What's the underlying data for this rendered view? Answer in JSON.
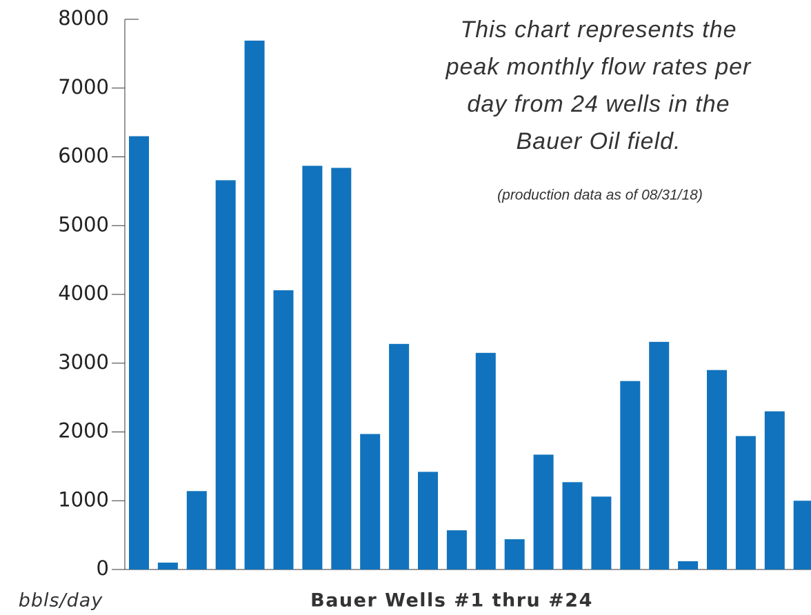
{
  "chart_data": {
    "type": "bar",
    "annotation": [
      "This chart represents the",
      "peak monthly flow rates per",
      "day from 24 wells in the",
      "Bauer Oil field."
    ],
    "annotation_note": "(production data as of 08/31/18)",
    "x_label": "Bauer Wells #1 thru #24",
    "y_label": "bbls/day",
    "categories": [
      null,
      null,
      null,
      null,
      null,
      null,
      null,
      null,
      null,
      null,
      null,
      null,
      null,
      null,
      null,
      null,
      null,
      null,
      null,
      null,
      null,
      null,
      null,
      null
    ],
    "values": [
      6300,
      100,
      1140,
      5660,
      7690,
      4060,
      5870,
      5840,
      1970,
      3280,
      1420,
      570,
      3150,
      440,
      1670,
      1270,
      1060,
      2740,
      3310,
      120,
      2900,
      1940,
      2300,
      1000
    ],
    "color": "#1173bd",
    "ylim": [
      0,
      8000
    ],
    "yticks": [
      0,
      1000,
      2000,
      3000,
      4000,
      5000,
      6000,
      7000,
      8000
    ],
    "grid": false
  }
}
